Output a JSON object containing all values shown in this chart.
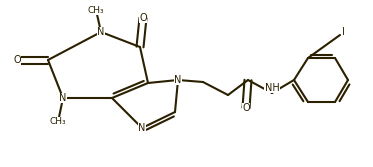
{
  "bg_color": "#ffffff",
  "line_color": "#2b2000",
  "text_color": "#2b2000",
  "linewidth": 1.5,
  "fontsize": 7.0,
  "figsize": [
    3.73,
    1.67
  ],
  "dpi": 100,
  "xlim": [
    0,
    373
  ],
  "ylim": [
    0,
    167
  ]
}
